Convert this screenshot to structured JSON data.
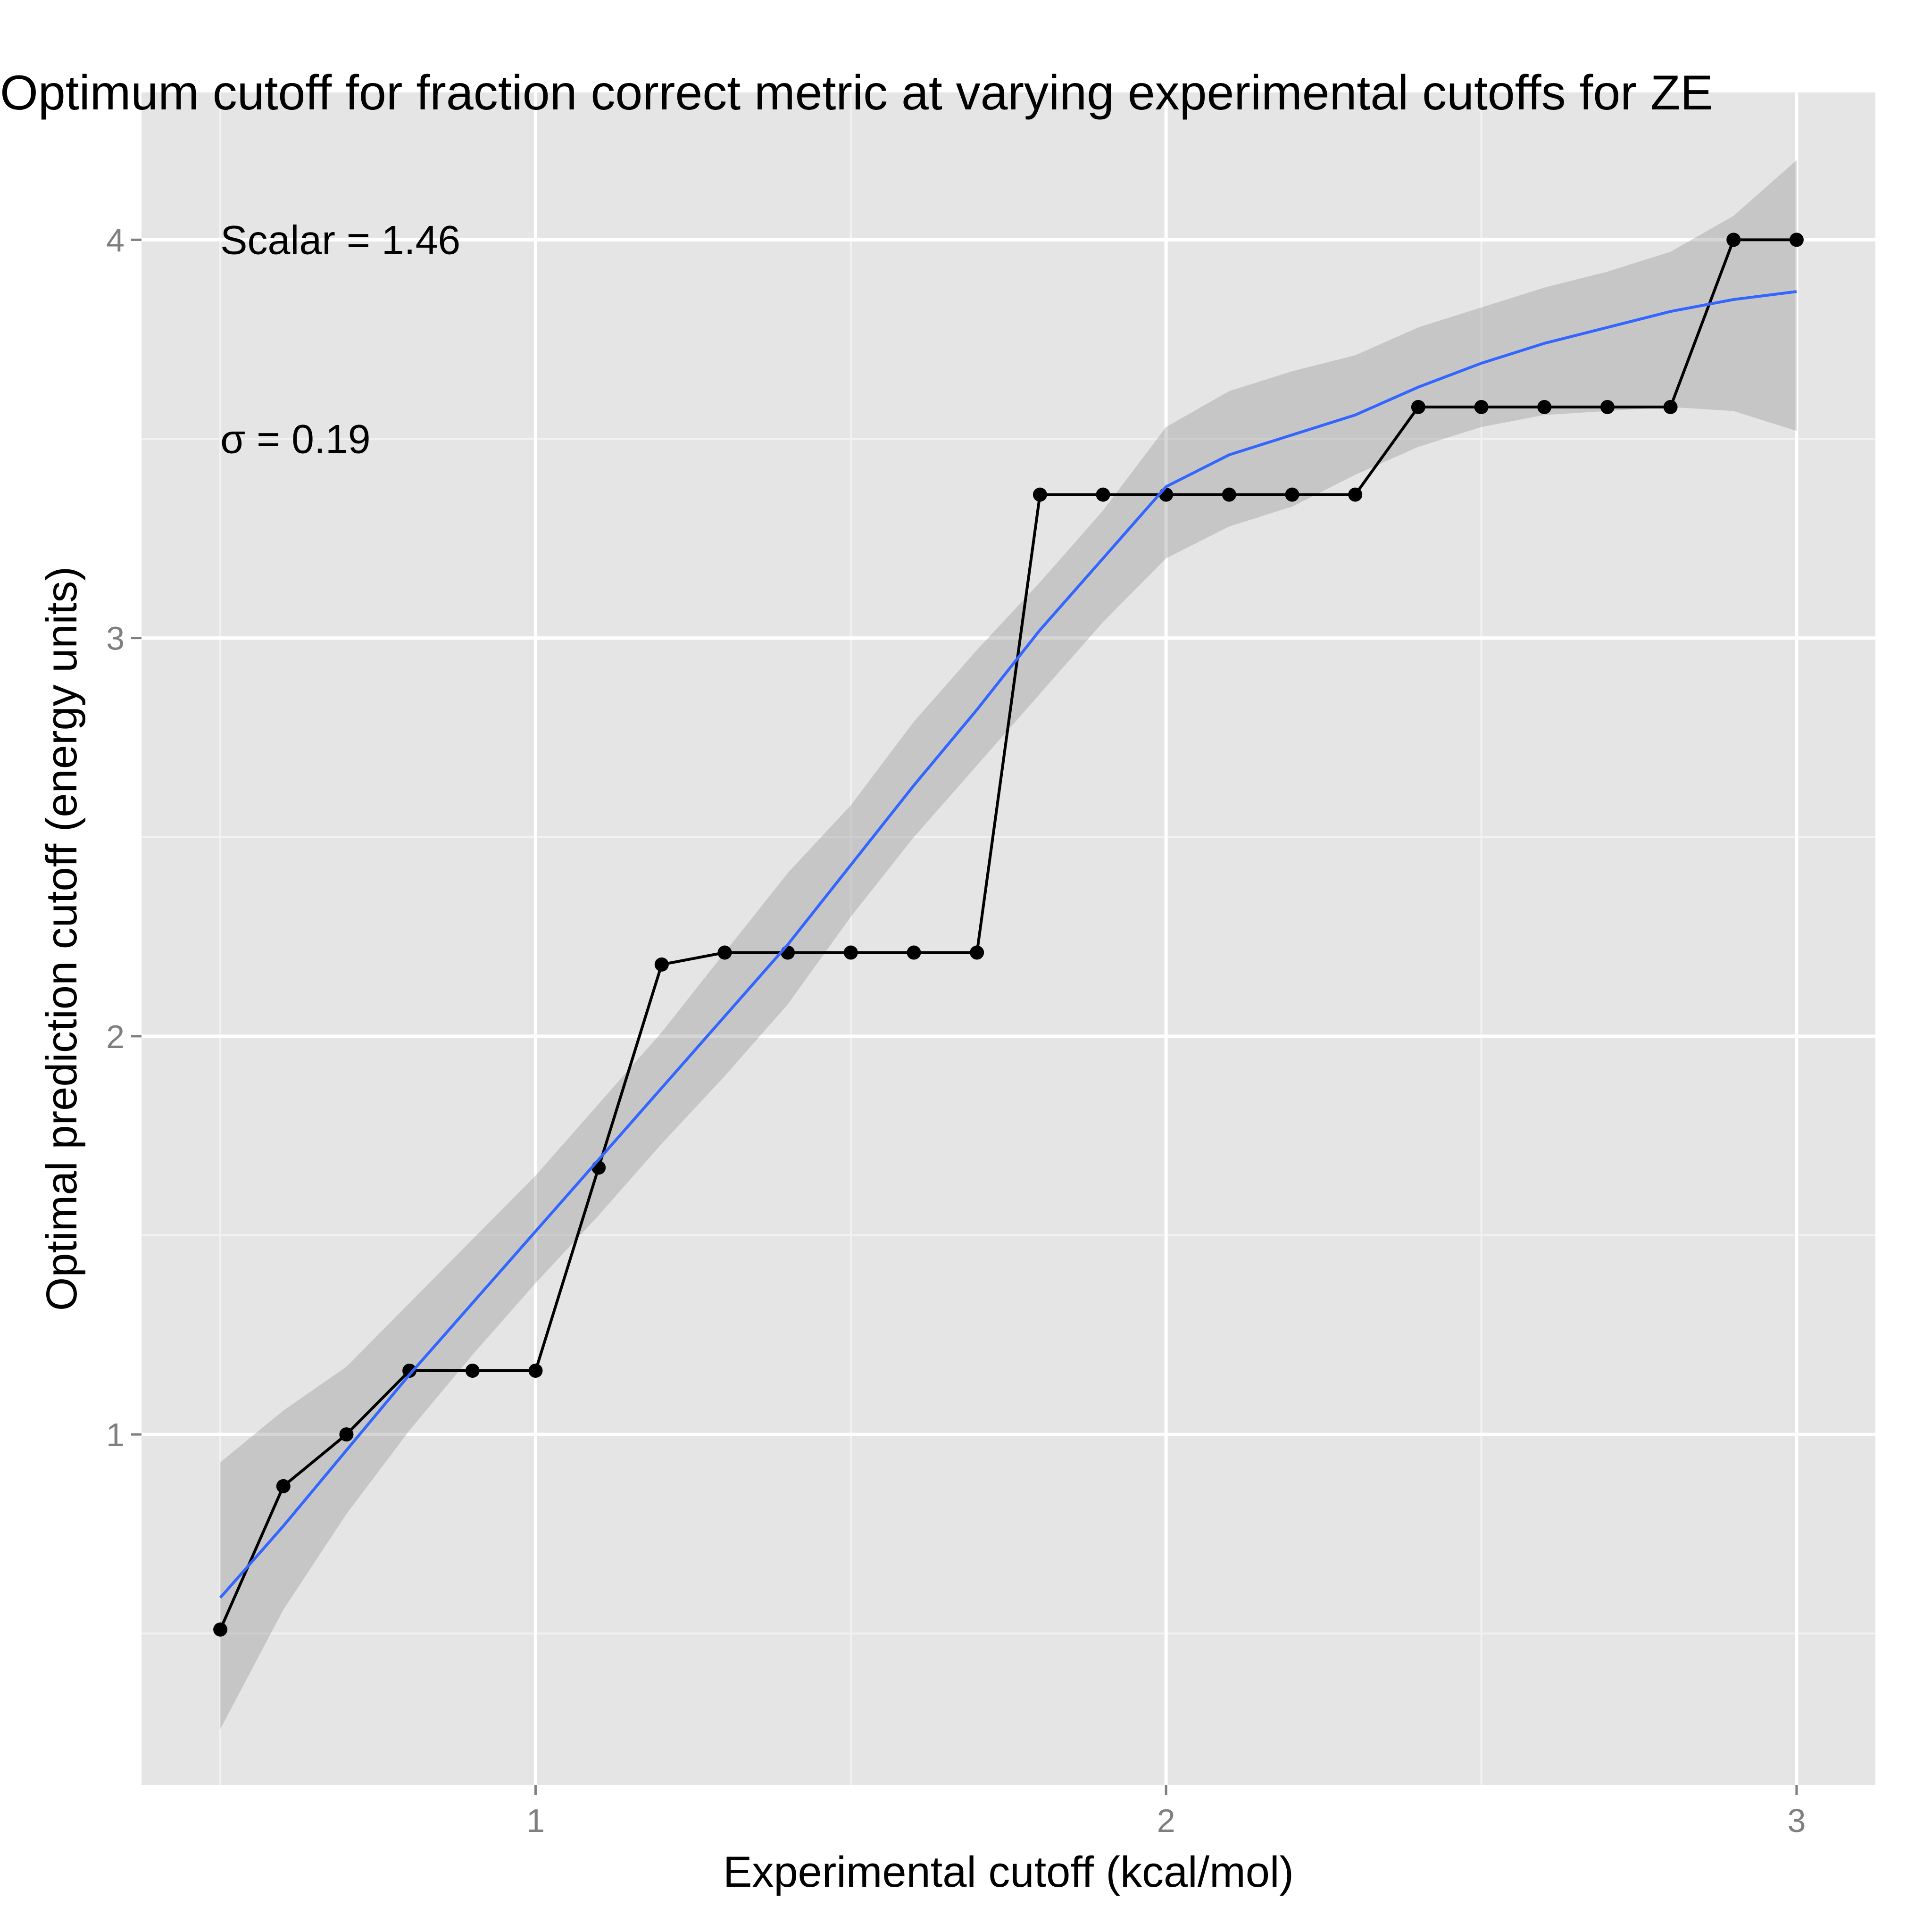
{
  "chart_data": {
    "type": "line",
    "title": "Optimum cutoff for fraction correct metric at varying experimental cutoffs for ZE",
    "xlabel": "Experimental cutoff (kcal/mol)",
    "ylabel": "Optimal prediction cutoff (energy units)",
    "xlim": [
      0.375,
      3.125
    ],
    "ylim": [
      0.12,
      4.37
    ],
    "x_ticks": [
      1,
      2,
      3
    ],
    "x_tick_labels": [
      "1",
      "2",
      "3"
    ],
    "y_ticks": [
      1,
      2,
      3,
      4
    ],
    "y_tick_labels": [
      "1",
      "2",
      "3",
      "4"
    ],
    "x_minor_ticks": [
      0.5,
      1.5,
      2.5
    ],
    "y_minor_ticks": [
      0.5,
      1.5,
      2.5,
      3.5
    ],
    "grid": true,
    "series": [
      {
        "x": [
          0.5,
          0.6,
          0.7,
          0.8,
          0.9,
          1.0,
          1.1,
          1.2,
          1.3,
          1.4,
          1.5,
          1.6,
          1.7,
          1.8,
          1.9,
          2.0,
          2.1,
          2.2,
          2.3,
          2.4,
          2.5,
          2.6,
          2.7,
          2.8,
          2.9,
          3.0
        ],
        "values": [
          0.51,
          0.87,
          1.0,
          1.16,
          1.16,
          1.16,
          1.67,
          2.18,
          2.21,
          2.21,
          2.21,
          2.21,
          2.21,
          3.36,
          3.36,
          3.36,
          3.36,
          3.36,
          3.36,
          3.58,
          3.58,
          3.58,
          3.58,
          3.58,
          4.0,
          4.0
        ]
      }
    ],
    "smooth": {
      "x": [
        0.5,
        0.6,
        0.7,
        0.8,
        0.9,
        1.0,
        1.1,
        1.2,
        1.3,
        1.4,
        1.5,
        1.6,
        1.7,
        1.8,
        1.9,
        2.0,
        2.1,
        2.2,
        2.3,
        2.4,
        2.5,
        2.6,
        2.7,
        2.8,
        2.9,
        3.0
      ],
      "fit": [
        0.59,
        0.77,
        0.96,
        1.15,
        1.33,
        1.51,
        1.69,
        1.87,
        2.05,
        2.23,
        2.43,
        2.63,
        2.82,
        3.02,
        3.2,
        3.38,
        3.46,
        3.51,
        3.56,
        3.63,
        3.69,
        3.74,
        3.78,
        3.82,
        3.85,
        3.87
      ],
      "lower": [
        0.26,
        0.56,
        0.8,
        1.01,
        1.2,
        1.38,
        1.55,
        1.73,
        1.9,
        2.08,
        2.3,
        2.5,
        2.68,
        2.86,
        3.04,
        3.2,
        3.28,
        3.33,
        3.41,
        3.48,
        3.53,
        3.56,
        3.57,
        3.58,
        3.57,
        3.52
      ],
      "upper": [
        0.93,
        1.06,
        1.17,
        1.33,
        1.49,
        1.65,
        1.83,
        2.01,
        2.21,
        2.41,
        2.58,
        2.79,
        2.97,
        3.14,
        3.32,
        3.53,
        3.62,
        3.67,
        3.71,
        3.78,
        3.83,
        3.88,
        3.92,
        3.97,
        4.06,
        4.2
      ]
    },
    "annotations": [
      "Scalar = 1.46",
      "σ = 0.19"
    ],
    "annotation_position": "top-left",
    "colors": {
      "panel": "#e5e5e5",
      "grid": "#ffffff",
      "series": "#000000",
      "points": "#000000",
      "smooth_line": "#3366ff",
      "ribbon": "#c8c8c8"
    }
  }
}
